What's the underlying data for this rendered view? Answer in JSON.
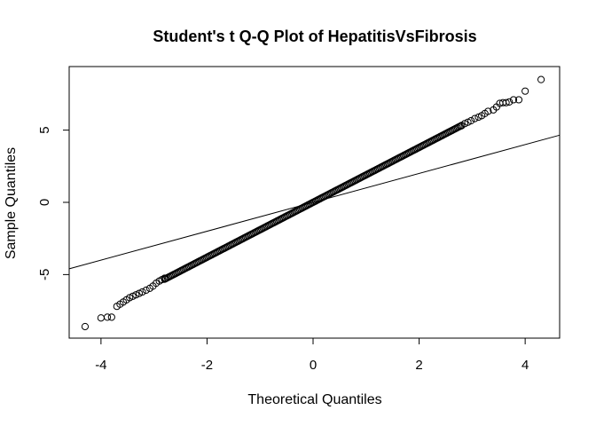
{
  "chart_data": {
    "type": "scatter",
    "title": "Student's t Q-Q Plot of HepatitisVsFibrosis",
    "xlabel": "Theoretical Quantiles",
    "ylabel": "Sample Quantiles",
    "xlim": [
      -4.6,
      4.65
    ],
    "ylim": [
      -9.4,
      9.4
    ],
    "xticks": [
      -4,
      -2,
      0,
      2,
      4
    ],
    "yticks": [
      -5,
      0,
      5
    ],
    "grid": false,
    "legend": "none",
    "marker": "open-circle",
    "colors": {
      "points": "#000000",
      "line": "#000000",
      "frame": "#000000"
    },
    "reference_line": {
      "intercept": 0,
      "slope": 1.0
    },
    "series": [
      {
        "points": [
          [
            -4.3,
            -8.6
          ],
          [
            -4.0,
            -8.0
          ],
          [
            -3.88,
            -7.95
          ],
          [
            -3.8,
            -7.95
          ],
          [
            -3.7,
            -7.2
          ],
          [
            -3.64,
            -7.05
          ],
          [
            -3.58,
            -6.9
          ],
          [
            -3.52,
            -6.75
          ],
          [
            -3.46,
            -6.6
          ],
          [
            -3.4,
            -6.5
          ],
          [
            -3.34,
            -6.4
          ],
          [
            -3.28,
            -6.3
          ],
          [
            -3.22,
            -6.2
          ],
          [
            -3.15,
            -6.08
          ],
          [
            -3.08,
            -5.95
          ],
          [
            -3.02,
            -5.8
          ],
          [
            -2.96,
            -5.6
          ],
          [
            -2.9,
            -5.45
          ],
          [
            -2.85,
            -5.35
          ],
          [
            -2.8,
            -5.25
          ],
          [
            2.8,
            5.3
          ],
          [
            2.86,
            5.45
          ],
          [
            2.92,
            5.55
          ],
          [
            2.98,
            5.65
          ],
          [
            3.05,
            5.8
          ],
          [
            3.12,
            5.9
          ],
          [
            3.18,
            6.0
          ],
          [
            3.24,
            6.15
          ],
          [
            3.3,
            6.3
          ],
          [
            3.4,
            6.4
          ],
          [
            3.46,
            6.6
          ],
          [
            3.52,
            6.85
          ],
          [
            3.58,
            6.9
          ],
          [
            3.64,
            6.9
          ],
          [
            3.7,
            6.95
          ],
          [
            3.78,
            7.1
          ],
          [
            3.88,
            7.1
          ],
          [
            4.0,
            7.7
          ],
          [
            4.3,
            8.5
          ]
        ]
      }
    ],
    "dense_band": {
      "x_start": -2.8,
      "x_end": 2.8,
      "count": 220,
      "y_slope": 1.9
    }
  }
}
